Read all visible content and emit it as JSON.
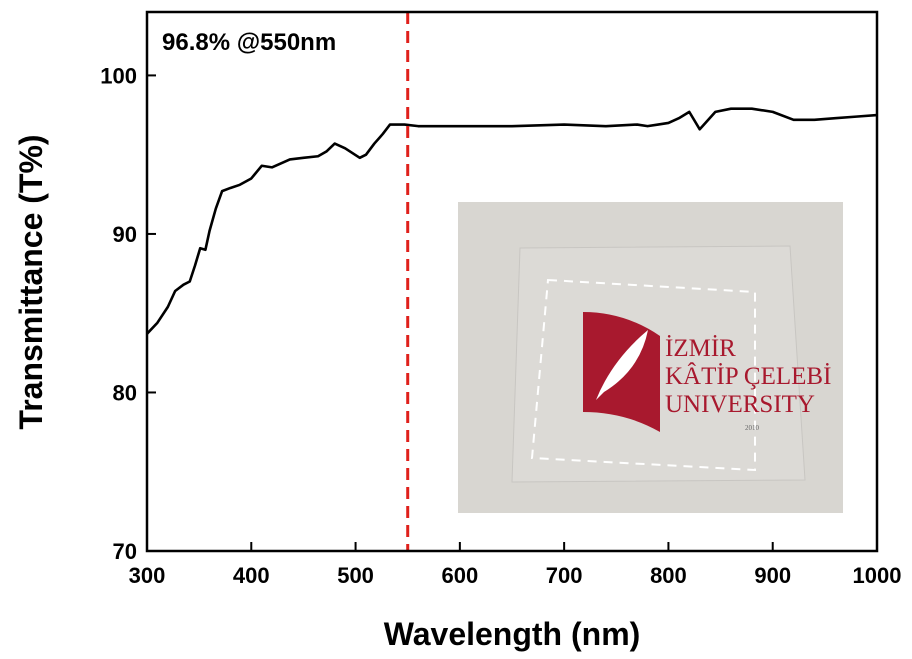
{
  "chart_data": {
    "type": "line",
    "x_label": "Wavelength (nm)",
    "y_label": "Transmittance (T%)",
    "annotation": "96.8% @550nm",
    "vline": 550,
    "vline_color": "#e0201b",
    "xlim": [
      300,
      1000
    ],
    "ylim": [
      70,
      104
    ],
    "xticks": [
      300,
      400,
      500,
      600,
      700,
      800,
      900,
      1000
    ],
    "yticks": [
      70,
      80,
      90,
      100
    ],
    "x": [
      300,
      310,
      320,
      327,
      335,
      341,
      346,
      351,
      356,
      360,
      366,
      372,
      380,
      389,
      400,
      410,
      420,
      437,
      450,
      464,
      472,
      480,
      490,
      504,
      510,
      518,
      526,
      533,
      540,
      547,
      560,
      600,
      650,
      700,
      740,
      770,
      780,
      790,
      800,
      810,
      820,
      830,
      845,
      860,
      880,
      900,
      920,
      940,
      960,
      980,
      1000
    ],
    "series": [
      {
        "color": "#000000",
        "values": [
          83.7,
          84.4,
          85.4,
          86.4,
          86.8,
          87.0,
          88.0,
          89.1,
          89.0,
          90.2,
          91.6,
          92.7,
          92.9,
          93.1,
          93.5,
          94.3,
          94.2,
          94.7,
          94.8,
          94.9,
          95.2,
          95.7,
          95.4,
          94.8,
          95.0,
          95.7,
          96.3,
          96.9,
          96.9,
          96.9,
          96.8,
          96.8,
          96.8,
          96.9,
          96.8,
          96.9,
          96.8,
          96.9,
          97.0,
          97.3,
          97.7,
          96.6,
          97.7,
          97.9,
          97.9,
          97.7,
          97.2,
          97.2,
          97.3,
          97.4,
          97.5
        ]
      }
    ],
    "inset": {
      "lines": [
        "İZMİR",
        "KÂTİP ÇELEBİ",
        "UNIVERSITY",
        "2010"
      ]
    }
  }
}
